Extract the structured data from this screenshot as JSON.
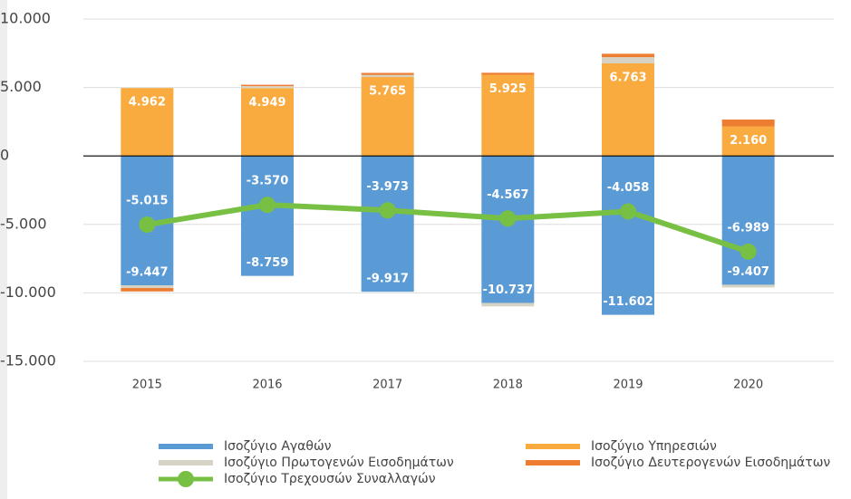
{
  "chart_data": {
    "type": "bar",
    "categories": [
      "2015",
      "2016",
      "2017",
      "2018",
      "2019",
      "2020"
    ],
    "ylim": [
      -15000,
      10000
    ],
    "yticks": [
      {
        "value": -15000,
        "label": "-15.000"
      },
      {
        "value": -10000,
        "label": "-10.000"
      },
      {
        "value": -5000,
        "label": "-5.000"
      },
      0,
      {
        "value": 5000,
        "label": "5.000"
      },
      {
        "value": 10000,
        "label": "10.000"
      }
    ],
    "grid": true,
    "series": [
      {
        "name": "Ισοζύγιο Αγαθών",
        "color": "#5b9bd5",
        "values": [
          -9447,
          -8759,
          -9917,
          -10737,
          -11602,
          -9407
        ],
        "value_labels": [
          "-9.447",
          "-8.759",
          "-9.917",
          "-10.737",
          "-11.602",
          "-9.407"
        ]
      },
      {
        "name": "Ισοζύγιο Υπηρεσιών",
        "color": "#f9ab3f",
        "values": [
          4962,
          4949,
          5765,
          5925,
          6763,
          2160
        ],
        "value_labels": [
          "4.962",
          "4.949",
          "5.765",
          "5.925",
          "6.763",
          "2.160"
        ]
      },
      {
        "name": "Ισοζύγιο Πρωτογενών Εισοδημάτων",
        "color": "#d6d3c4",
        "values": [
          -200,
          150,
          150,
          -250,
          450,
          -200
        ]
      },
      {
        "name": "Ισοζύγιο Δευτερογενών Εισοδημάτων",
        "color": "#ed7d31",
        "values": [
          -250,
          100,
          150,
          150,
          250,
          500
        ]
      },
      {
        "name": "Ισοζύγιο Τρεχουσών Συναλλαγών",
        "type": "line",
        "color": "#77c043",
        "values": [
          -5015,
          -3570,
          -3973,
          -4567,
          -4058,
          -6989
        ],
        "value_labels": [
          "-5.015",
          "-3.570",
          "-3.973",
          "-4.567",
          "-4.058",
          "-6.989"
        ]
      }
    ]
  }
}
